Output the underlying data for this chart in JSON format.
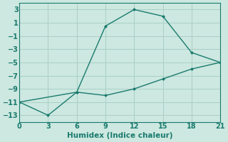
{
  "line1_x": [
    0,
    6,
    9,
    12,
    15,
    18,
    21
  ],
  "line1_y": [
    -11,
    -9.5,
    0.5,
    3,
    2,
    -3.5,
    -5
  ],
  "line2_x": [
    0,
    3,
    6,
    9,
    12,
    15,
    18,
    21
  ],
  "line2_y": [
    -11,
    -13,
    -9.5,
    -10,
    -9,
    -7.5,
    -6,
    -5
  ],
  "line_color": "#1a7a6e",
  "bg_color": "#cce8e0",
  "grid_color": "#aacfc6",
  "xlabel": "Humidex (Indice chaleur)",
  "xlim": [
    0,
    21
  ],
  "ylim": [
    -14,
    4
  ],
  "xticks": [
    0,
    3,
    6,
    9,
    12,
    15,
    18,
    21
  ],
  "yticks": [
    -13,
    -11,
    -9,
    -7,
    -5,
    -3,
    -1,
    1,
    3
  ],
  "xlabel_fontsize": 7.5,
  "tick_fontsize": 7
}
